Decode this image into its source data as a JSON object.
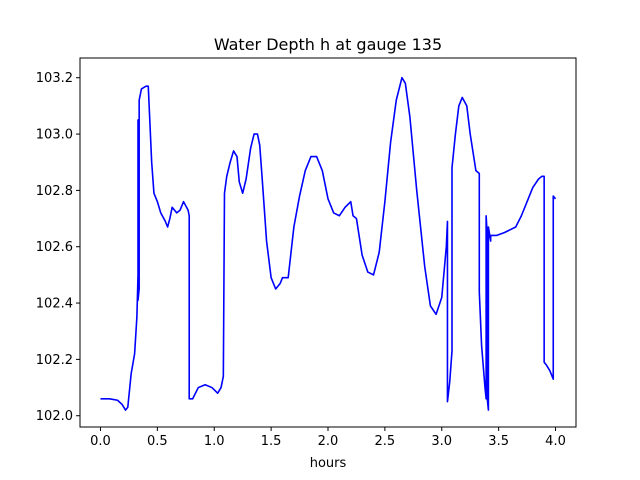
{
  "chart_data": {
    "type": "line",
    "title": "Water Depth h at gauge 135",
    "xlabel": "hours",
    "ylabel": "",
    "xlim": [
      -0.18,
      4.18
    ],
    "ylim": [
      101.96,
      103.27
    ],
    "xticks": [
      0.0,
      0.5,
      1.0,
      1.5,
      2.0,
      2.5,
      3.0,
      3.5,
      4.0
    ],
    "xtick_labels": [
      "0.0",
      "0.5",
      "1.0",
      "1.5",
      "2.0",
      "2.5",
      "3.0",
      "3.5",
      "4.0"
    ],
    "yticks": [
      102.0,
      102.2,
      102.4,
      102.6,
      102.8,
      103.0,
      103.2
    ],
    "ytick_labels": [
      "102.0",
      "102.2",
      "102.4",
      "102.6",
      "102.8",
      "103.0",
      "103.2"
    ],
    "grid": false,
    "series": [
      {
        "color": "#0000ff",
        "points": [
          [
            0.0,
            102.06
          ],
          [
            0.08,
            102.06
          ],
          [
            0.15,
            102.055
          ],
          [
            0.19,
            102.04
          ],
          [
            0.22,
            102.02
          ],
          [
            0.24,
            102.03
          ],
          [
            0.27,
            102.15
          ],
          [
            0.3,
            102.22
          ],
          [
            0.32,
            102.35
          ],
          [
            0.33,
            102.5
          ],
          [
            0.33,
            103.05
          ],
          [
            0.33,
            102.41
          ],
          [
            0.34,
            102.45
          ],
          [
            0.34,
            103.12
          ],
          [
            0.36,
            103.16
          ],
          [
            0.4,
            103.17
          ],
          [
            0.42,
            103.17
          ],
          [
            0.45,
            102.9
          ],
          [
            0.47,
            102.79
          ],
          [
            0.5,
            102.76
          ],
          [
            0.53,
            102.72
          ],
          [
            0.57,
            102.69
          ],
          [
            0.59,
            102.67
          ],
          [
            0.61,
            102.7
          ],
          [
            0.63,
            102.74
          ],
          [
            0.67,
            102.72
          ],
          [
            0.7,
            102.73
          ],
          [
            0.73,
            102.76
          ],
          [
            0.77,
            102.73
          ],
          [
            0.78,
            102.71
          ],
          [
            0.78,
            102.06
          ],
          [
            0.81,
            102.06
          ],
          [
            0.86,
            102.1
          ],
          [
            0.92,
            102.11
          ],
          [
            0.98,
            102.1
          ],
          [
            1.03,
            102.08
          ],
          [
            1.06,
            102.1
          ],
          [
            1.08,
            102.14
          ],
          [
            1.09,
            102.79
          ],
          [
            1.11,
            102.85
          ],
          [
            1.14,
            102.9
          ],
          [
            1.17,
            102.94
          ],
          [
            1.2,
            102.92
          ],
          [
            1.22,
            102.83
          ],
          [
            1.25,
            102.79
          ],
          [
            1.28,
            102.84
          ],
          [
            1.32,
            102.95
          ],
          [
            1.35,
            103.0
          ],
          [
            1.38,
            103.0
          ],
          [
            1.4,
            102.96
          ],
          [
            1.42,
            102.85
          ],
          [
            1.46,
            102.62
          ],
          [
            1.5,
            102.49
          ],
          [
            1.54,
            102.45
          ],
          [
            1.58,
            102.47
          ],
          [
            1.6,
            102.49
          ],
          [
            1.65,
            102.49
          ],
          [
            1.7,
            102.67
          ],
          [
            1.75,
            102.78
          ],
          [
            1.8,
            102.87
          ],
          [
            1.85,
            102.92
          ],
          [
            1.9,
            102.92
          ],
          [
            1.95,
            102.87
          ],
          [
            2.0,
            102.77
          ],
          [
            2.05,
            102.72
          ],
          [
            2.1,
            102.71
          ],
          [
            2.15,
            102.74
          ],
          [
            2.2,
            102.76
          ],
          [
            2.22,
            102.71
          ],
          [
            2.25,
            102.7
          ],
          [
            2.3,
            102.57
          ],
          [
            2.35,
            102.51
          ],
          [
            2.4,
            102.5
          ],
          [
            2.45,
            102.58
          ],
          [
            2.5,
            102.76
          ],
          [
            2.55,
            102.97
          ],
          [
            2.6,
            103.12
          ],
          [
            2.65,
            103.2
          ],
          [
            2.68,
            103.18
          ],
          [
            2.72,
            103.06
          ],
          [
            2.78,
            102.8
          ],
          [
            2.85,
            102.53
          ],
          [
            2.9,
            102.39
          ],
          [
            2.95,
            102.36
          ],
          [
            3.0,
            102.42
          ],
          [
            3.04,
            102.6
          ],
          [
            3.05,
            102.69
          ],
          [
            3.05,
            102.05
          ],
          [
            3.07,
            102.12
          ],
          [
            3.09,
            102.23
          ],
          [
            3.09,
            102.88
          ],
          [
            3.12,
            103.0
          ],
          [
            3.15,
            103.1
          ],
          [
            3.18,
            103.13
          ],
          [
            3.22,
            103.1
          ],
          [
            3.25,
            103.0
          ],
          [
            3.3,
            102.87
          ],
          [
            3.33,
            102.86
          ],
          [
            3.33,
            102.44
          ],
          [
            3.35,
            102.25
          ],
          [
            3.38,
            102.1
          ],
          [
            3.39,
            102.06
          ],
          [
            3.39,
            102.71
          ],
          [
            3.4,
            102.64
          ],
          [
            3.4,
            102.06
          ],
          [
            3.41,
            102.02
          ],
          [
            3.41,
            102.67
          ],
          [
            3.43,
            102.62
          ],
          [
            3.43,
            102.64
          ],
          [
            3.48,
            102.64
          ],
          [
            3.55,
            102.65
          ],
          [
            3.6,
            102.66
          ],
          [
            3.65,
            102.67
          ],
          [
            3.7,
            102.71
          ],
          [
            3.75,
            102.76
          ],
          [
            3.8,
            102.81
          ],
          [
            3.85,
            102.84
          ],
          [
            3.88,
            102.85
          ],
          [
            3.9,
            102.85
          ],
          [
            3.9,
            102.19
          ],
          [
            3.92,
            102.18
          ],
          [
            3.95,
            102.16
          ],
          [
            3.98,
            102.13
          ],
          [
            3.98,
            102.78
          ],
          [
            4.0,
            102.77
          ]
        ]
      }
    ]
  }
}
